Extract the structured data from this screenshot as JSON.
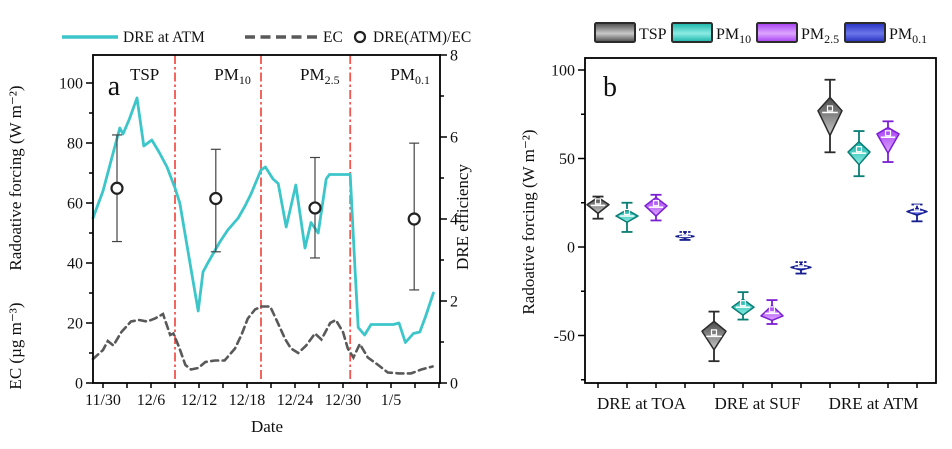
{
  "chart_data": [
    {
      "id": "a",
      "type": "line",
      "panel_label": "a",
      "legend": [
        {
          "label": "DRE at ATM",
          "marker": "solid-line"
        },
        {
          "label": "EC",
          "marker": "dashed-line"
        },
        {
          "label": "DRE(ATM)/EC",
          "marker": "open-circle"
        }
      ],
      "axes": {
        "x": {
          "label": "Date",
          "tick_days": [
            0,
            6,
            12,
            18,
            24,
            30,
            36
          ],
          "tick_labels": [
            "11/30",
            "12/6",
            "12/12",
            "12/18",
            "12/24",
            "12/30",
            "1/5"
          ],
          "minor_step_days": 3,
          "domain_days": [
            -1.25,
            42.1
          ]
        },
        "y_left": {
          "label_top": "Radoative forcing (W m⁻²)",
          "label_bottom": "EC (µg m⁻³)",
          "range": [
            0,
            109
          ],
          "major_ticks": [
            0,
            20,
            40,
            60,
            80,
            100
          ],
          "minor_step": 10
        },
        "y_right": {
          "label": "DRE efficiency",
          "range": [
            0,
            8
          ],
          "major_ticks": [
            0,
            2,
            4,
            6,
            8
          ],
          "minor_step": 1
        }
      },
      "divider_color": "#f2564e",
      "dividers_days": [
        9,
        19.75,
        30.9
      ],
      "regions": [
        {
          "base": "TSP",
          "sub": "",
          "center_day": 5.2
        },
        {
          "base": "PM",
          "sub": "10",
          "center_day": 16.2
        },
        {
          "base": "PM",
          "sub": "2.5",
          "center_day": 27.1
        },
        {
          "base": "PM",
          "sub": "0.1",
          "center_day": 38.4
        }
      ],
      "series": [
        {
          "name": "DRE at ATM",
          "axis": "left",
          "style": "solid",
          "color": "#3cc6c9",
          "points": [
            [
              -1.25,
              55
            ],
            [
              0,
              64
            ],
            [
              1,
              74
            ],
            [
              2.1,
              85
            ],
            [
              2.5,
              83
            ],
            [
              3.3,
              88
            ],
            [
              4.25,
              95
            ],
            [
              5.1,
              79
            ],
            [
              6.1,
              81
            ],
            [
              7,
              77
            ],
            [
              8,
              72
            ],
            [
              9,
              65
            ],
            [
              9.6,
              60
            ],
            [
              10.3,
              49
            ],
            [
              11,
              38
            ],
            [
              11.9,
              24
            ],
            [
              12.5,
              37
            ],
            [
              13.1,
              40
            ],
            [
              14.6,
              47
            ],
            [
              15.6,
              51
            ],
            [
              16.9,
              55
            ],
            [
              17.75,
              59
            ],
            [
              18.5,
              63
            ],
            [
              19.75,
              71
            ],
            [
              20.3,
              72
            ],
            [
              21.25,
              68
            ],
            [
              21.9,
              66.5
            ],
            [
              22.9,
              52
            ],
            [
              24.1,
              66
            ],
            [
              25.25,
              45
            ],
            [
              26,
              53.5
            ],
            [
              26.9,
              50
            ],
            [
              27.9,
              68
            ],
            [
              28.3,
              69.5
            ],
            [
              30.9,
              69.5
            ],
            [
              31.5,
              38
            ],
            [
              31.9,
              18.5
            ],
            [
              32.7,
              16
            ],
            [
              33.5,
              19.5
            ],
            [
              35,
              19.5
            ],
            [
              36.3,
              19.5
            ],
            [
              37,
              20
            ],
            [
              37.8,
              13.5
            ],
            [
              38.8,
              16.5
            ],
            [
              39.6,
              17
            ],
            [
              40.3,
              22
            ],
            [
              41.3,
              30
            ]
          ]
        },
        {
          "name": "EC",
          "axis": "left",
          "style": "dashed",
          "color": "#595959",
          "points": [
            [
              -1.25,
              8
            ],
            [
              0,
              11
            ],
            [
              0.6,
              14
            ],
            [
              1.3,
              12.5
            ],
            [
              2.3,
              17
            ],
            [
              3.5,
              20.5
            ],
            [
              4.5,
              21
            ],
            [
              5.5,
              20.5
            ],
            [
              6.5,
              21.5
            ],
            [
              7.5,
              23
            ],
            [
              8.4,
              16
            ],
            [
              8.8,
              16.5
            ],
            [
              9.5,
              12
            ],
            [
              10.3,
              6
            ],
            [
              11,
              4.5
            ],
            [
              11.9,
              5
            ],
            [
              12.8,
              7
            ],
            [
              14,
              7.5
            ],
            [
              15.2,
              7.5
            ],
            [
              16.5,
              11.5
            ],
            [
              17.3,
              16
            ],
            [
              18.1,
              21.5
            ],
            [
              19,
              24.5
            ],
            [
              19.8,
              25.5
            ],
            [
              20.9,
              25.5
            ],
            [
              21.6,
              21.5
            ],
            [
              22.8,
              14.5
            ],
            [
              23.5,
              11.5
            ],
            [
              24.4,
              10
            ],
            [
              25.4,
              12.5
            ],
            [
              26.5,
              16.5
            ],
            [
              27.3,
              14.5
            ],
            [
              28.4,
              20
            ],
            [
              29.1,
              21
            ],
            [
              30,
              17
            ],
            [
              30.6,
              11.5
            ],
            [
              31.3,
              8.5
            ],
            [
              32.1,
              13
            ],
            [
              33.1,
              8.5
            ],
            [
              34.4,
              6
            ],
            [
              35.6,
              3.5
            ],
            [
              37,
              3.2
            ],
            [
              38.5,
              3.2
            ],
            [
              39.8,
              4.5
            ],
            [
              41.2,
              5.5
            ]
          ]
        },
        {
          "name": "DRE(ATM)/EC",
          "axis": "right",
          "style": "scatter-errorbar",
          "color": "#222222",
          "points": [
            {
              "day": 1.75,
              "value": 4.75,
              "lo": 3.45,
              "hi": 6.05
            },
            {
              "day": 14.1,
              "value": 4.5,
              "lo": 3.2,
              "hi": 5.7
            },
            {
              "day": 26.5,
              "value": 4.27,
              "lo": 3.05,
              "hi": 5.5
            },
            {
              "day": 38.9,
              "value": 4.0,
              "lo": 2.27,
              "hi": 5.85
            }
          ]
        }
      ]
    },
    {
      "id": "b",
      "type": "violin",
      "panel_label": "b",
      "y_axis": {
        "label": "Radoative forcing (W m⁻²)",
        "major_ticks": [
          -50,
          0,
          50,
          100
        ],
        "minor_step": 25,
        "range": [
          -77,
          107
        ]
      },
      "categories": [
        "DRE at TOA",
        "DRE at SUF",
        "DRE at ATM"
      ],
      "series": [
        {
          "name": "TSP",
          "label_base": "TSP",
          "label_sub": "",
          "color_dark": "#4a4a4a",
          "color_light": "#c9c9c9",
          "stroke": "#2b2b2b",
          "stats": [
            {
              "mean": 23.5,
              "body": [
                19,
                28
              ],
              "whisker": [
                16,
                28.5
              ],
              "wf": 0.45,
              "hw": 11
            },
            {
              "mean": -50.5,
              "body": [
                -58,
                -42
              ],
              "whisker": [
                -64.5,
                -36.5
              ],
              "wf": 0.35,
              "hw": 12
            },
            {
              "mean": 76,
              "body": [
                63,
                84.5
              ],
              "whisker": [
                53.5,
                94.5
              ],
              "wf": 0.35,
              "hw": 12
            }
          ]
        },
        {
          "name": "PM10",
          "label_base": "PM",
          "label_sub": "10",
          "color_dark": "#17b3a8",
          "color_light": "#8cece4",
          "stroke": "#0a7d74",
          "stats": [
            {
              "mean": 17.5,
              "body": [
                14,
                21
              ],
              "whisker": [
                8.5,
                25
              ],
              "wf": 0.5,
              "hw": 11
            },
            {
              "mean": -34,
              "body": [
                -38.5,
                -29.5
              ],
              "whisker": [
                -41,
                -25.5
              ],
              "wf": 0.5,
              "hw": 11
            },
            {
              "mean": 53,
              "body": [
                46.5,
                59.5
              ],
              "whisker": [
                40,
                65.5
              ],
              "wf": 0.45,
              "hw": 11
            }
          ]
        },
        {
          "name": "PM2.5",
          "label_base": "PM",
          "label_sub": "2.5",
          "color_dark": "#a53df2",
          "color_light": "#dda5ff",
          "stroke": "#7b1fd2",
          "stats": [
            {
              "mean": 22.5,
              "body": [
                17.5,
                28
              ],
              "whisker": [
                15,
                29.5
              ],
              "wf": 0.45,
              "hw": 11
            },
            {
              "mean": -37.5,
              "body": [
                -41.5,
                -33
              ],
              "whisker": [
                -43.5,
                -30
              ],
              "wf": 0.7,
              "hw": 11
            },
            {
              "mean": 62,
              "body": [
                53,
                67.5
              ],
              "whisker": [
                48,
                71
              ],
              "wf": 0.25,
              "hw": 11
            }
          ]
        },
        {
          "name": "PM0.1",
          "label_base": "PM",
          "label_sub": "0.1",
          "color_dark": "#2430c0",
          "color_light": "#6b76ea",
          "stroke": "#141c8e",
          "stats": [
            {
              "mean": 6,
              "body": [
                5,
                7
              ],
              "whisker": [
                4,
                8.5
              ],
              "wf": 0.5,
              "hw": 9
            },
            {
              "mean": -11.5,
              "body": [
                -13,
                -10
              ],
              "whisker": [
                -15,
                -8.5
              ],
              "wf": 0.5,
              "hw": 10
            },
            {
              "mean": 20,
              "body": [
                18,
                22
              ],
              "whisker": [
                14.5,
                24
              ],
              "wf": 0.5,
              "hw": 10
            }
          ]
        }
      ]
    }
  ]
}
